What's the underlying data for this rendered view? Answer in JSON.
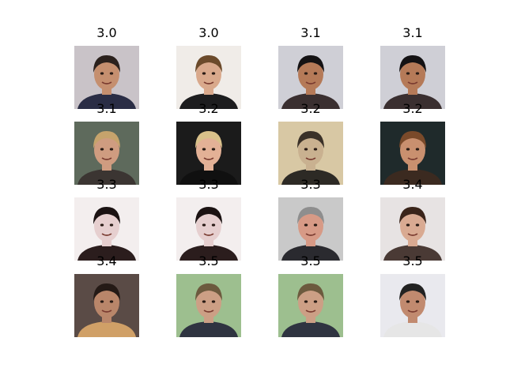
{
  "faces": [
    {
      "score": "3.0",
      "bg": "#c9c3c8",
      "skin": "#c58f6f",
      "hair": "#2b211d",
      "shirt": "#2a2d45"
    },
    {
      "score": "3.0",
      "bg": "#f0ece8",
      "skin": "#d9a98c",
      "hair": "#6b4a2b",
      "shirt": "#1d1d1f"
    },
    {
      "score": "3.1",
      "bg": "#cfcfd6",
      "skin": "#b57a58",
      "hair": "#141214",
      "shirt": "#3a2f30"
    },
    {
      "score": "3.1",
      "bg": "#cfcfd6",
      "skin": "#b57a58",
      "hair": "#141214",
      "shirt": "#3a2f30"
    },
    {
      "score": "3.1",
      "bg": "#5e6a5c",
      "skin": "#cf9c80",
      "hair": "#c6a36c",
      "shirt": "#3b3532"
    },
    {
      "score": "3.2",
      "bg": "#1b1b1b",
      "skin": "#e3b196",
      "hair": "#d9c18a",
      "shirt": "#101010"
    },
    {
      "score": "3.2",
      "bg": "#d8c8a4",
      "skin": "#c9b190",
      "hair": "#3a3128",
      "shirt": "#2d2a25"
    },
    {
      "score": "3.2",
      "bg": "#1f2a2b",
      "skin": "#c9906f",
      "hair": "#7a4a2a",
      "shirt": "#3b2a20"
    },
    {
      "score": "3.3",
      "bg": "#f3eeee",
      "skin": "#e6cfcf",
      "hair": "#1b1212",
      "shirt": "#2b1d1d"
    },
    {
      "score": "3.3",
      "bg": "#f3eeee",
      "skin": "#e6cfcf",
      "hair": "#1b1212",
      "shirt": "#2b1d1d"
    },
    {
      "score": "3.3",
      "bg": "#c9c9c9",
      "skin": "#d79a86",
      "hair": "#8e8e8e",
      "shirt": "#2a2a2f"
    },
    {
      "score": "3.4",
      "bg": "#e7e3e3",
      "skin": "#d9aa92",
      "hair": "#3a241a",
      "shirt": "#4a3a35"
    },
    {
      "score": "3.4",
      "bg": "#5a4b46",
      "skin": "#b9866a",
      "hair": "#241a16",
      "shirt": "#d0a067"
    },
    {
      "score": "3.5",
      "bg": "#9dbf8f",
      "skin": "#cc9f85",
      "hair": "#6c5a3e",
      "shirt": "#2f3441"
    },
    {
      "score": "3.5",
      "bg": "#9dbf8f",
      "skin": "#cc9f85",
      "hair": "#6c5a3e",
      "shirt": "#2f3441"
    },
    {
      "score": "3.5",
      "bg": "#e9e9ee",
      "skin": "#c18a6f",
      "hair": "#222222",
      "shirt": "#e6e6e6"
    }
  ]
}
